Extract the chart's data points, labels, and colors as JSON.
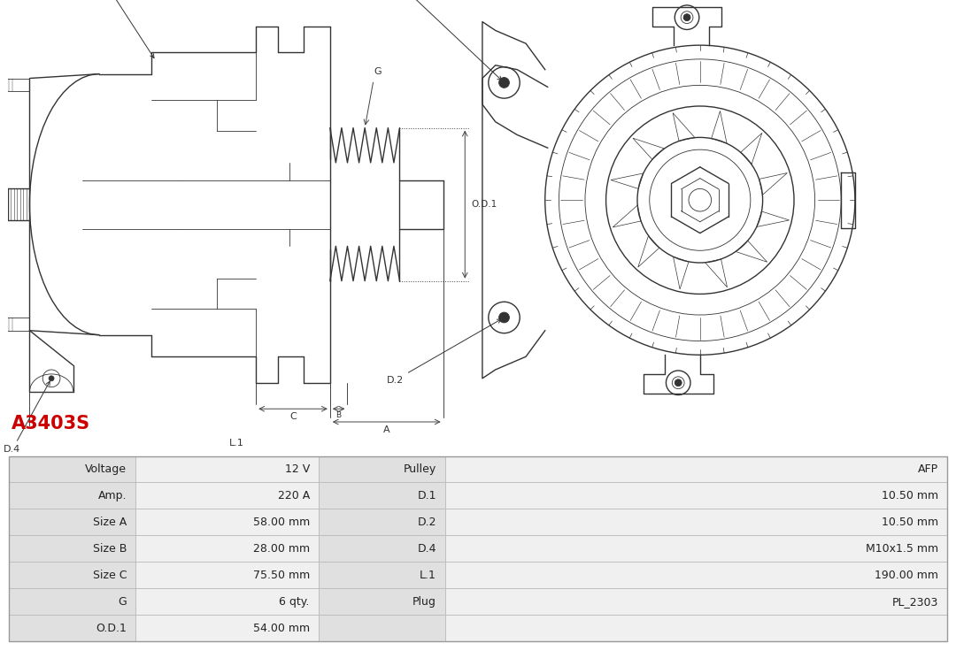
{
  "title": "A3403S",
  "title_color": "#cc0000",
  "bg_color": "#ffffff",
  "line_color": "#333333",
  "table_border_color": "#bbbbbb",
  "table_label_bg": "#e0e0e0",
  "table_value_bg": "#f0f0f0",
  "table_data": [
    [
      "Voltage",
      "12 V",
      "Pulley",
      "AFP"
    ],
    [
      "Amp.",
      "220 A",
      "D.1",
      "10.50 mm"
    ],
    [
      "Size A",
      "58.00 mm",
      "D.2",
      "10.50 mm"
    ],
    [
      "Size B",
      "28.00 mm",
      "D.4",
      "M10x1.5 mm"
    ],
    [
      "Size C",
      "75.50 mm",
      "L.1",
      "190.00 mm"
    ],
    [
      "G",
      "6 qty.",
      "Plug",
      "PL_2303"
    ],
    [
      "O.D.1",
      "54.00 mm",
      "",
      ""
    ]
  ]
}
